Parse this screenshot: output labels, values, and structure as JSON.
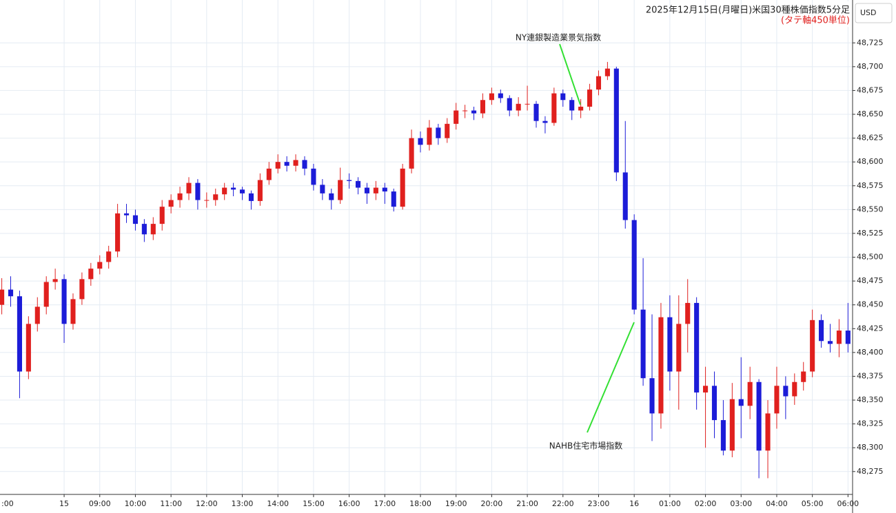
{
  "chart_data": {
    "type": "candlestick",
    "title": "2025年12月15日(月曜日)米国30種株価指数5分足",
    "subtitle": "(タテ軸450単位)",
    "currency": "USD",
    "annotations": [
      {
        "text": "NY連銀製造業景気指数"
      },
      {
        "text": "NAHB住宅市場指数"
      }
    ],
    "up_color": "#e0201e",
    "down_color": "#1c1cd8",
    "annotation_color": "#33e033",
    "grid": true,
    "xlim": [
      6.2,
      30.09
    ],
    "ylim": [
      48251,
      48770
    ],
    "xticks": [
      {
        "value": 6,
        "label": ":00"
      },
      {
        "value": 8,
        "label": "15"
      },
      {
        "value": 9,
        "label": "09:00"
      },
      {
        "value": 10,
        "label": "10:00"
      },
      {
        "value": 11,
        "label": "11:00"
      },
      {
        "value": 12,
        "label": "12:00"
      },
      {
        "value": 13,
        "label": "13:00"
      },
      {
        "value": 14,
        "label": "14:00"
      },
      {
        "value": 15,
        "label": "15:00"
      },
      {
        "value": 16,
        "label": "16:00"
      },
      {
        "value": 17,
        "label": "17:00"
      },
      {
        "value": 18,
        "label": "18:00"
      },
      {
        "value": 19,
        "label": "19:00"
      },
      {
        "value": 20,
        "label": "20:00"
      },
      {
        "value": 21,
        "label": "21:00"
      },
      {
        "value": 22,
        "label": "22:00"
      },
      {
        "value": 23,
        "label": "23:00"
      },
      {
        "value": 24,
        "label": "16"
      },
      {
        "value": 25,
        "label": "01:00"
      },
      {
        "value": 26,
        "label": "02:00"
      },
      {
        "value": 27,
        "label": "03:00"
      },
      {
        "value": 28,
        "label": "04:00"
      },
      {
        "value": 29,
        "label": "05:00"
      },
      {
        "value": 30,
        "label": "06:00"
      }
    ],
    "yticks": [
      {
        "value": 48275,
        "label": "48,275"
      },
      {
        "value": 48300,
        "label": "48,300"
      },
      {
        "value": 48325,
        "label": "48,325"
      },
      {
        "value": 48350,
        "label": "48,350"
      },
      {
        "value": 48375,
        "label": "48,375"
      },
      {
        "value": 48400,
        "label": "48,400"
      },
      {
        "value": 48425,
        "label": "48,425"
      },
      {
        "value": 48450,
        "label": "48,450"
      },
      {
        "value": 48475,
        "label": "48,475"
      },
      {
        "value": 48500,
        "label": "48,500"
      },
      {
        "value": 48525,
        "label": "48,525"
      },
      {
        "value": 48550,
        "label": "48,550"
      },
      {
        "value": 48575,
        "label": "48,575"
      },
      {
        "value": 48600,
        "label": "48,600"
      },
      {
        "value": 48625,
        "label": "48,625"
      },
      {
        "value": 48650,
        "label": "48,650"
      },
      {
        "value": 48675,
        "label": "48,675"
      },
      {
        "value": 48700,
        "label": "48,700"
      },
      {
        "value": 48725,
        "label": "48,725"
      }
    ],
    "x": [
      6.25,
      6.5,
      6.75,
      7,
      7.25,
      7.5,
      7.75,
      8,
      8.25,
      8.5,
      8.75,
      9,
      9.25,
      9.5,
      9.75,
      10,
      10.25,
      10.5,
      10.75,
      11,
      11.25,
      11.5,
      11.75,
      12,
      12.25,
      12.5,
      12.75,
      13,
      13.25,
      13.5,
      13.75,
      14,
      14.25,
      14.5,
      14.75,
      15,
      15.25,
      15.5,
      15.75,
      16,
      16.25,
      16.5,
      16.75,
      17,
      17.25,
      17.5,
      17.75,
      18,
      18.25,
      18.5,
      18.75,
      19,
      19.25,
      19.5,
      19.75,
      20,
      20.25,
      20.5,
      20.75,
      21,
      21.25,
      21.5,
      21.75,
      22,
      22.25,
      22.5,
      22.75,
      23,
      23.25,
      23.5,
      23.75,
      24,
      24.25,
      24.5,
      24.75,
      25,
      25.25,
      25.5,
      25.75,
      26,
      26.25,
      26.5,
      26.75,
      27,
      27.25,
      27.5,
      27.75,
      28,
      28.25,
      28.5,
      28.75,
      29,
      29.25,
      29.5,
      29.75,
      30
    ],
    "candles": [
      [
        48450,
        48478,
        48440,
        48466
      ],
      [
        48466,
        48480,
        48448,
        48459
      ],
      [
        48459,
        48465,
        48352,
        48380
      ],
      [
        48380,
        48438,
        48372,
        48430
      ],
      [
        48430,
        48458,
        48422,
        48448
      ],
      [
        48448,
        48480,
        48440,
        48474
      ],
      [
        48474,
        48488,
        48466,
        48477
      ],
      [
        48477,
        48482,
        48410,
        48430
      ],
      [
        48430,
        48462,
        48424,
        48456
      ],
      [
        48456,
        48484,
        48450,
        48477
      ],
      [
        48477,
        48494,
        48470,
        48488
      ],
      [
        48488,
        48502,
        48482,
        48495
      ],
      [
        48495,
        48512,
        48488,
        48506
      ],
      [
        48506,
        48556,
        48500,
        48546
      ],
      [
        48546,
        48556,
        48536,
        48544
      ],
      [
        48544,
        48550,
        48528,
        48535
      ],
      [
        48535,
        48540,
        48516,
        48524
      ],
      [
        48524,
        48542,
        48518,
        48535
      ],
      [
        48535,
        48560,
        48528,
        48553
      ],
      [
        48553,
        48566,
        48546,
        48560
      ],
      [
        48560,
        48574,
        48552,
        48567
      ],
      [
        48567,
        48584,
        48560,
        48578
      ],
      [
        48578,
        48582,
        48550,
        48560
      ],
      [
        48560,
        48568,
        48552,
        48560
      ],
      [
        48560,
        48572,
        48554,
        48566
      ],
      [
        48566,
        48578,
        48560,
        48573
      ],
      [
        48573,
        48578,
        48564,
        48571
      ],
      [
        48571,
        48574,
        48560,
        48567
      ],
      [
        48567,
        48570,
        48550,
        48559
      ],
      [
        48559,
        48588,
        48554,
        48581
      ],
      [
        48581,
        48600,
        48576,
        48593
      ],
      [
        48593,
        48608,
        48588,
        48600
      ],
      [
        48600,
        48606,
        48590,
        48596
      ],
      [
        48596,
        48608,
        48590,
        48602
      ],
      [
        48602,
        48606,
        48586,
        48593
      ],
      [
        48593,
        48598,
        48570,
        48576
      ],
      [
        48576,
        48582,
        48560,
        48567
      ],
      [
        48567,
        48572,
        48550,
        48560
      ],
      [
        48560,
        48594,
        48556,
        48581
      ],
      [
        48581,
        48588,
        48572,
        48580
      ],
      [
        48580,
        48584,
        48566,
        48573
      ],
      [
        48573,
        48578,
        48556,
        48567
      ],
      [
        48567,
        48580,
        48560,
        48573
      ],
      [
        48573,
        48578,
        48556,
        48569
      ],
      [
        48569,
        48572,
        48548,
        48553
      ],
      [
        48553,
        48598,
        48550,
        48593
      ],
      [
        48593,
        48634,
        48588,
        48625
      ],
      [
        48625,
        48632,
        48610,
        48618
      ],
      [
        48618,
        48644,
        48612,
        48636
      ],
      [
        48636,
        48640,
        48618,
        48625
      ],
      [
        48625,
        48646,
        48620,
        48640
      ],
      [
        48640,
        48662,
        48634,
        48654
      ],
      [
        48654,
        48660,
        48646,
        48654
      ],
      [
        48654,
        48658,
        48644,
        48651
      ],
      [
        48651,
        48672,
        48646,
        48665
      ],
      [
        48665,
        48678,
        48660,
        48672
      ],
      [
        48672,
        48676,
        48662,
        48667
      ],
      [
        48667,
        48670,
        48648,
        48654
      ],
      [
        48654,
        48668,
        48648,
        48661
      ],
      [
        48661,
        48680,
        48654,
        48661
      ],
      [
        48661,
        48664,
        48636,
        48643
      ],
      [
        48643,
        48648,
        48630,
        48641
      ],
      [
        48641,
        48678,
        48638,
        48672
      ],
      [
        48672,
        48676,
        48658,
        48665
      ],
      [
        48665,
        48668,
        48644,
        48654
      ],
      [
        48654,
        48666,
        48646,
        48658
      ],
      [
        48658,
        48682,
        48654,
        48676
      ],
      [
        48676,
        48696,
        48670,
        48690
      ],
      [
        48690,
        48705,
        48686,
        48698
      ],
      [
        48698,
        48700,
        48580,
        48589
      ],
      [
        48589,
        48643,
        48530,
        48539
      ],
      [
        48539,
        48545,
        48440,
        48445
      ],
      [
        48445,
        48499,
        48365,
        48373
      ],
      [
        48373,
        48440,
        48307,
        48336
      ],
      [
        48336,
        48452,
        48320,
        48437
      ],
      [
        48437,
        48460,
        48360,
        48380
      ],
      [
        48380,
        48460,
        48340,
        48430
      ],
      [
        48430,
        48477,
        48400,
        48452
      ],
      [
        48452,
        48458,
        48340,
        48358
      ],
      [
        48358,
        48385,
        48300,
        48365
      ],
      [
        48365,
        48380,
        48310,
        48329
      ],
      [
        48329,
        48350,
        48292,
        48297
      ],
      [
        48297,
        48368,
        48290,
        48351
      ],
      [
        48351,
        48395,
        48310,
        48344
      ],
      [
        48344,
        48385,
        48330,
        48369
      ],
      [
        48369,
        48372,
        48268,
        48297
      ],
      [
        48297,
        48350,
        48268,
        48336
      ],
      [
        48336,
        48385,
        48320,
        48365
      ],
      [
        48365,
        48375,
        48330,
        48354
      ],
      [
        48354,
        48378,
        48345,
        48369
      ],
      [
        48369,
        48390,
        48360,
        48380
      ],
      [
        48380,
        48445,
        48374,
        48434
      ],
      [
        48434,
        48440,
        48405,
        48412
      ],
      [
        48412,
        48430,
        48400,
        48409
      ],
      [
        48409,
        48435,
        48395,
        48423
      ],
      [
        48423,
        48452,
        48400,
        48409
      ]
    ]
  }
}
